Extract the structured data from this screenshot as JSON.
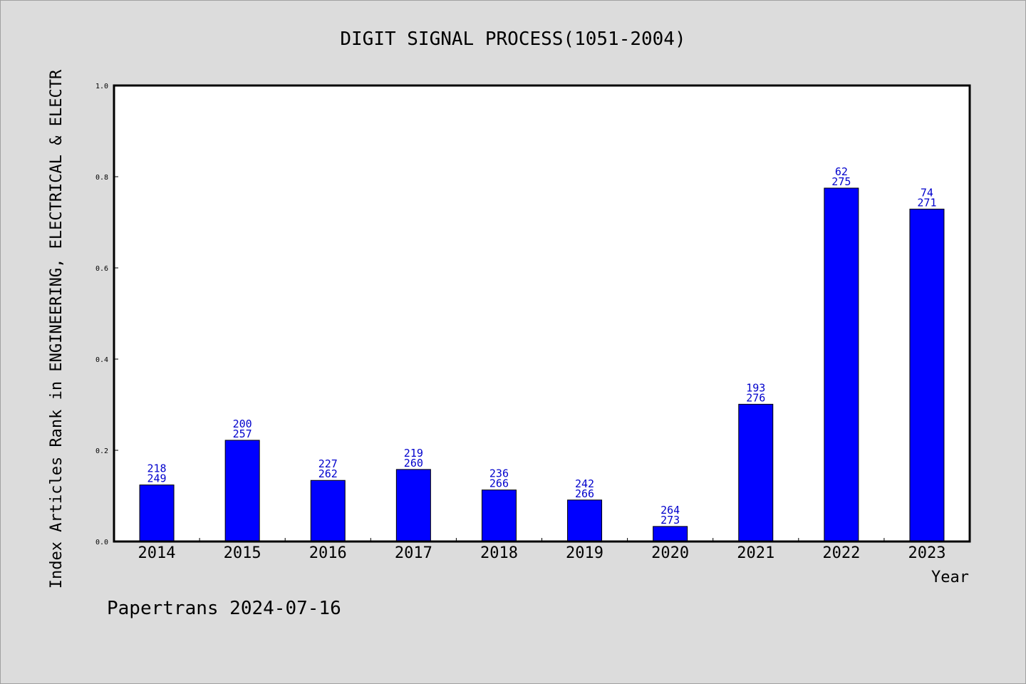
{
  "chart_data": {
    "type": "bar",
    "title": "DIGIT SIGNAL PROCESS(1051-2004)",
    "xlabel": "Year",
    "ylabel": "Index Articles Rank in ENGINEERING, ELECTRICAL & ELECTR",
    "categories": [
      "2014",
      "2015",
      "2016",
      "2017",
      "2018",
      "2019",
      "2020",
      "2021",
      "2022",
      "2023"
    ],
    "values": [
      0.124,
      0.222,
      0.134,
      0.158,
      0.113,
      0.091,
      0.033,
      0.301,
      0.775,
      0.729
    ],
    "labels_top": [
      "218",
      "200",
      "227",
      "219",
      "236",
      "242",
      "264",
      "193",
      "62",
      "74"
    ],
    "labels_bottom": [
      "249",
      "257",
      "262",
      "260",
      "266",
      "266",
      "273",
      "276",
      "275",
      "271"
    ],
    "ylim": [
      0,
      1.0
    ],
    "yticks": [
      "0.0",
      "0.2",
      "0.4",
      "0.6",
      "0.8",
      "1.0"
    ],
    "bar_color": "#0000ff",
    "label_color": "#0000cc",
    "grid": false
  },
  "footer": "Papertrans 2024-07-16"
}
